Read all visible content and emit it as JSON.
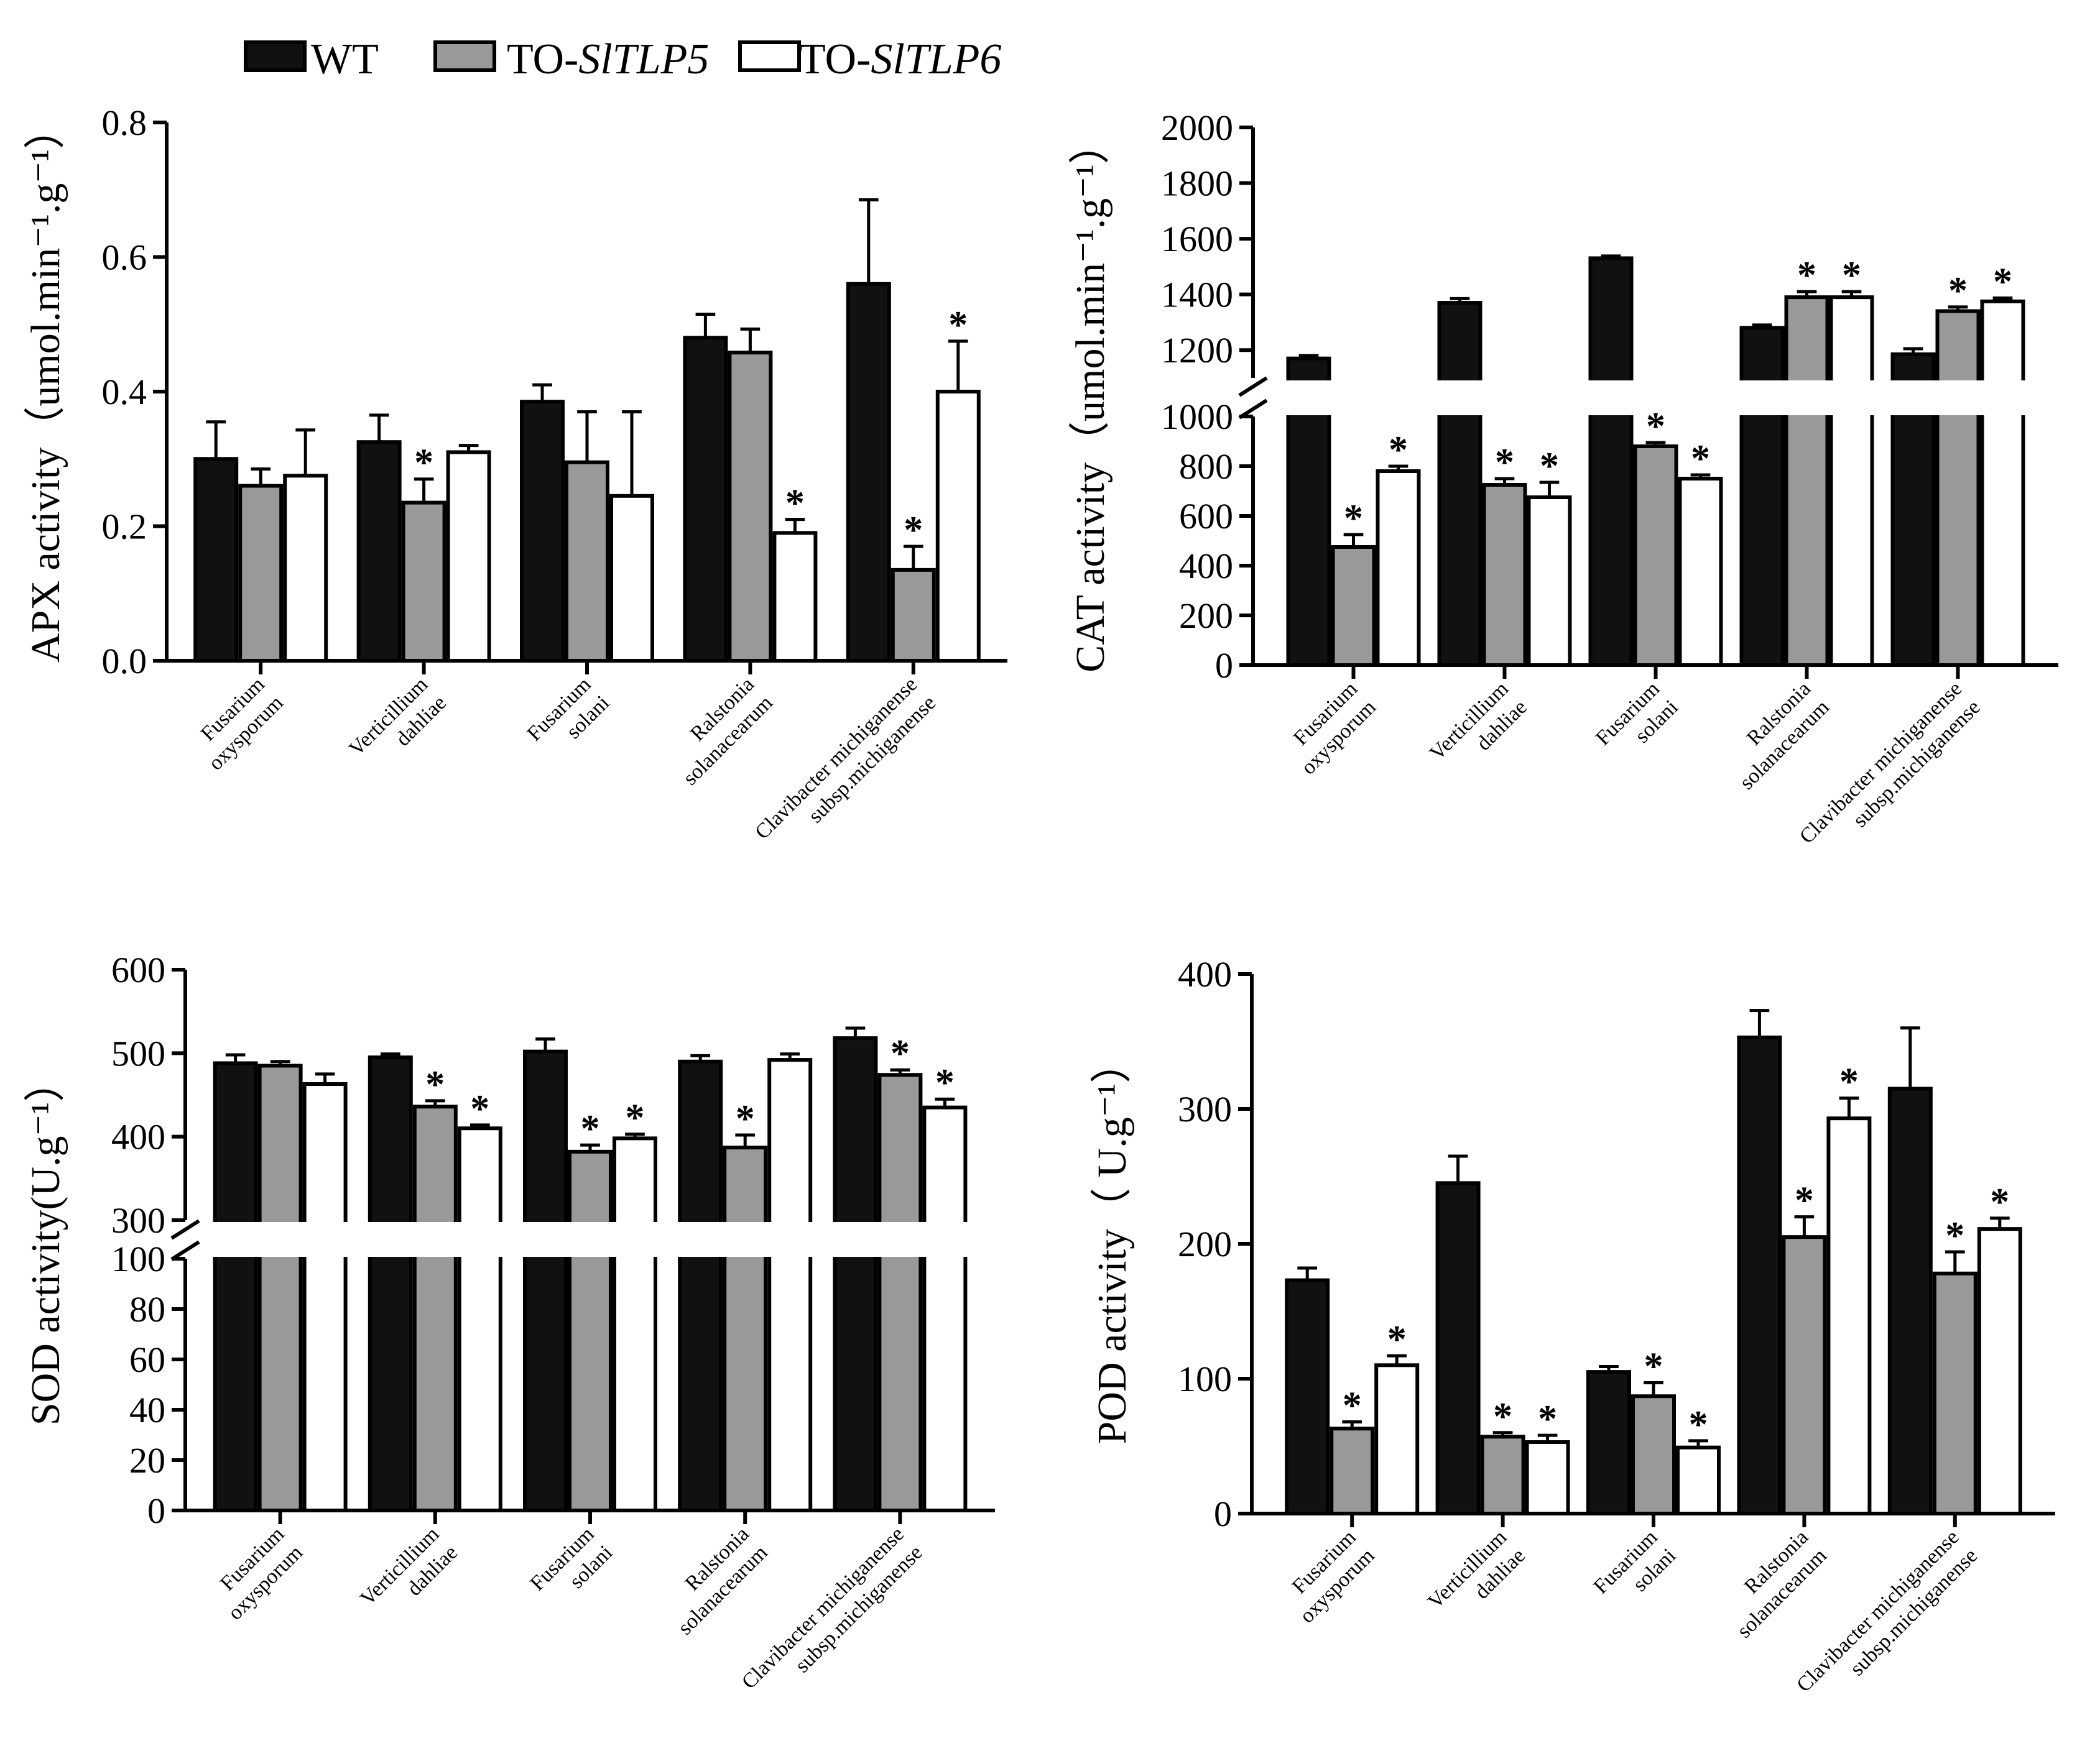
{
  "legend": {
    "items": [
      {
        "label": "WT",
        "color": "#111111"
      },
      {
        "label": "TO-",
        "italic": "SlTLP5",
        "color": "#999999"
      },
      {
        "label": "TO-",
        "italic": "SlTLP6",
        "color": "#ffffff"
      }
    ]
  },
  "categories_text": [
    [
      "Fusarium",
      "oxysporum"
    ],
    [
      "Verticillium",
      "dahliae"
    ],
    [
      "Fusarium",
      "solani"
    ],
    [
      "Ralstonia",
      "solanacearum"
    ],
    [
      "Clavibacter michiganense",
      "subsp.michiganense"
    ]
  ],
  "chart_data": [
    {
      "id": "apx",
      "type": "bar",
      "ylabel": "APX activity（umol.min⁻¹.g⁻¹）",
      "ylim": [
        0,
        0.8
      ],
      "yticks": [
        "0.0",
        "0.2",
        "0.4",
        "0.6",
        "0.8"
      ],
      "categories": [
        "Fusarium oxysporum",
        "Verticillium dahliae",
        "Fusarium solani",
        "Ralstonia solanacearum",
        "Clavibacter michiganense subsp.michiganense"
      ],
      "series": [
        {
          "name": "WT",
          "values": [
            0.3,
            0.325,
            0.385,
            0.48,
            0.56
          ],
          "errors": [
            0.055,
            0.04,
            0.025,
            0.035,
            0.125
          ],
          "sig": [
            false,
            false,
            false,
            false,
            false
          ]
        },
        {
          "name": "TO-SlTLP5",
          "values": [
            0.26,
            0.235,
            0.295,
            0.458,
            0.135
          ],
          "errors": [
            0.025,
            0.035,
            0.075,
            0.035,
            0.035
          ],
          "sig": [
            false,
            true,
            false,
            false,
            true
          ]
        },
        {
          "name": "TO-SlTLP6",
          "values": [
            0.275,
            0.31,
            0.245,
            0.19,
            0.4
          ],
          "errors": [
            0.068,
            0.01,
            0.125,
            0.02,
            0.075
          ],
          "sig": [
            false,
            false,
            false,
            true,
            true
          ]
        }
      ]
    },
    {
      "id": "cat",
      "type": "bar",
      "ylabel": "CAT activity（umol.min⁻¹.g⁻¹）",
      "ylim": [
        0,
        2000
      ],
      "axis_break": [
        1000,
        1100
      ],
      "yticks": [
        "0",
        "200",
        "400",
        "600",
        "800",
        "1000",
        "1200",
        "1400",
        "1600",
        "1800",
        "2000"
      ],
      "categories": [
        "Fusarium oxysporum",
        "Verticillium dahliae",
        "Fusarium solani",
        "Ralstonia solanacearum",
        "Clavibacter michiganense subsp.michiganense"
      ],
      "series": [
        {
          "name": "WT",
          "values": [
            1170,
            1370,
            1530,
            1280,
            1185
          ],
          "errors": [
            10,
            15,
            8,
            10,
            20
          ],
          "sig": [
            false,
            false,
            false,
            false,
            false
          ]
        },
        {
          "name": "TO-SlTLP5",
          "values": [
            475,
            725,
            880,
            1390,
            1340
          ],
          "errors": [
            50,
            25,
            15,
            20,
            15
          ],
          "sig": [
            true,
            true,
            true,
            true,
            true
          ]
        },
        {
          "name": "TO-SlTLP6",
          "values": [
            780,
            675,
            750,
            1390,
            1375
          ],
          "errors": [
            20,
            60,
            15,
            20,
            12
          ],
          "sig": [
            true,
            true,
            true,
            true,
            true
          ]
        }
      ]
    },
    {
      "id": "sod",
      "type": "bar",
      "ylabel": "SOD activity(U.g⁻¹）",
      "ylim": [
        0,
        600
      ],
      "axis_break": [
        100,
        300
      ],
      "yticks": [
        "0",
        "20",
        "40",
        "60",
        "80",
        "100",
        "300",
        "400",
        "500",
        "600"
      ],
      "categories": [
        "Fusarium oxysporum",
        "Verticillium dahliae",
        "Fusarium solani",
        "Ralstonia solanacearum",
        "Clavibacter michiganense subsp.michiganense"
      ],
      "series": [
        {
          "name": "WT",
          "values": [
            488,
            495,
            502,
            490,
            518
          ],
          "errors": [
            10,
            4,
            15,
            7,
            12
          ],
          "sig": [
            false,
            false,
            false,
            false,
            false
          ]
        },
        {
          "name": "TO-SlTLP5",
          "values": [
            485,
            436,
            382,
            387,
            474
          ],
          "errors": [
            5,
            7,
            8,
            15,
            6
          ],
          "sig": [
            false,
            true,
            true,
            true,
            true
          ]
        },
        {
          "name": "TO-SlTLP6",
          "values": [
            463,
            410,
            398,
            492,
            435
          ],
          "errors": [
            12,
            4,
            5,
            7,
            10
          ],
          "sig": [
            false,
            true,
            true,
            false,
            true
          ]
        }
      ]
    },
    {
      "id": "pod",
      "type": "bar",
      "ylabel": "POD activity（ U.g⁻¹）",
      "ylim": [
        0,
        400
      ],
      "yticks": [
        "0",
        "100",
        "200",
        "300",
        "400"
      ],
      "categories": [
        "Fusarium oxysporum",
        "Verticillium dahliae",
        "Fusarium solani",
        "Ralstonia solanacearum",
        "Clavibacter michiganense subsp.michiganense"
      ],
      "series": [
        {
          "name": "WT",
          "values": [
            173,
            245,
            105,
            353,
            315
          ],
          "errors": [
            9,
            20,
            4,
            20,
            45
          ],
          "sig": [
            false,
            false,
            false,
            false,
            false
          ]
        },
        {
          "name": "TO-SlTLP5",
          "values": [
            63,
            57,
            87,
            205,
            178
          ],
          "errors": [
            5,
            3,
            10,
            15,
            16
          ],
          "sig": [
            true,
            true,
            true,
            true,
            true
          ]
        },
        {
          "name": "TO-SlTLP6",
          "values": [
            110,
            53,
            49,
            293,
            211
          ],
          "errors": [
            7,
            5,
            5,
            15,
            8
          ],
          "sig": [
            true,
            true,
            true,
            true,
            true
          ]
        }
      ]
    }
  ]
}
